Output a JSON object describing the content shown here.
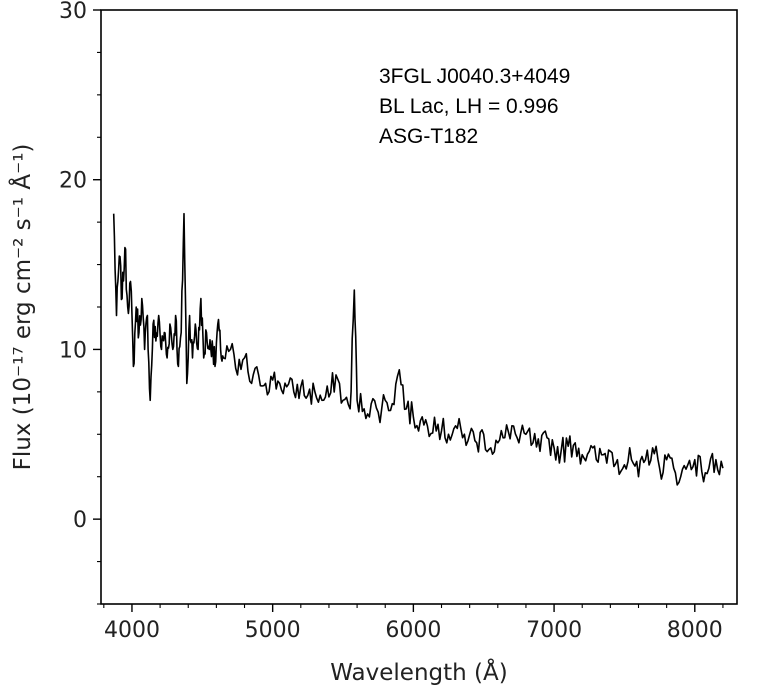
{
  "chart_data": {
    "type": "line",
    "title": "",
    "xlabel": "Wavelength (Å)",
    "ylabel": "Flux (10⁻¹⁷ erg cm⁻² s⁻¹ Å⁻¹)",
    "xlim": [
      3780,
      8300
    ],
    "ylim": [
      -5,
      30
    ],
    "x_ticks": [
      4000,
      5000,
      6000,
      7000,
      8000
    ],
    "y_ticks": [
      0,
      10,
      20,
      30
    ],
    "grid": false,
    "line_color": "#000000",
    "annotations": [
      "3FGL J0040.3+4049",
      "BL Lac, LH = 0.996",
      "ASG-T182"
    ],
    "series": [
      {
        "x": [
          3870,
          3890,
          3910,
          3930,
          3950,
          3970,
          3990,
          4010,
          4030,
          4050,
          4070,
          4090,
          4110,
          4130,
          4150,
          4170,
          4190,
          4210,
          4230,
          4250,
          4270,
          4290,
          4310,
          4330,
          4350,
          4370,
          4390,
          4410,
          4430,
          4450,
          4470,
          4490,
          4510,
          4530,
          4550,
          4570,
          4590,
          4610,
          4630,
          4650,
          4700,
          4750,
          4800,
          4850,
          4900,
          4950,
          5000,
          5050,
          5100,
          5150,
          5200,
          5250,
          5300,
          5350,
          5400,
          5450,
          5500,
          5550,
          5580,
          5600,
          5650,
          5700,
          5750,
          5800,
          5850,
          5900,
          5950,
          6000,
          6050,
          6100,
          6150,
          6200,
          6250,
          6300,
          6350,
          6400,
          6450,
          6500,
          6550,
          6600,
          6650,
          6700,
          6750,
          6800,
          6850,
          6900,
          6950,
          7000,
          7050,
          7100,
          7150,
          7200,
          7250,
          7300,
          7350,
          7400,
          7450,
          7500,
          7550,
          7600,
          7650,
          7700,
          7750,
          7800,
          7850,
          7900,
          7950,
          8000,
          8050,
          8100,
          8150,
          8200
        ],
        "y": [
          18.0,
          12.0,
          15.5,
          13.0,
          16.0,
          12.5,
          14.0,
          9.0,
          12.5,
          11.0,
          13.0,
          10.0,
          12.0,
          7.0,
          11.5,
          10.5,
          12.0,
          10.0,
          11.0,
          9.5,
          11.5,
          10.0,
          12.0,
          9.0,
          11.0,
          18.0,
          8.0,
          12.0,
          9.5,
          11.5,
          10.0,
          13.0,
          9.5,
          11.0,
          10.0,
          10.5,
          9.0,
          11.5,
          10.0,
          9.5,
          10.0,
          8.5,
          9.5,
          8.0,
          8.5,
          8.0,
          8.2,
          8.0,
          7.8,
          7.5,
          7.8,
          7.3,
          7.5,
          7.0,
          7.2,
          8.5,
          7.0,
          6.5,
          13.5,
          7.0,
          6.5,
          6.8,
          6.3,
          7.0,
          6.8,
          8.8,
          6.5,
          6.0,
          5.8,
          5.5,
          6.0,
          5.2,
          5.0,
          5.5,
          4.8,
          5.0,
          4.5,
          5.0,
          4.2,
          4.5,
          4.8,
          5.5,
          4.5,
          5.0,
          4.5,
          4.0,
          4.8,
          4.2,
          4.0,
          4.3,
          4.5,
          3.8,
          4.0,
          3.5,
          3.8,
          4.0,
          3.5,
          3.2,
          3.5,
          2.5,
          3.5,
          4.2,
          3.0,
          3.5,
          3.0,
          2.5,
          3.2,
          3.5,
          2.8,
          3.0,
          3.5,
          3.0
        ]
      }
    ]
  }
}
